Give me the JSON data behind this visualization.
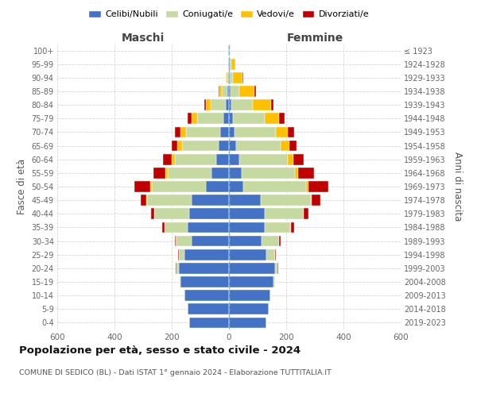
{
  "age_groups": [
    "0-4",
    "5-9",
    "10-14",
    "15-19",
    "20-24",
    "25-29",
    "30-34",
    "35-39",
    "40-44",
    "45-49",
    "50-54",
    "55-59",
    "60-64",
    "65-69",
    "70-74",
    "75-79",
    "80-84",
    "85-89",
    "90-94",
    "95-99",
    "100+"
  ],
  "birth_years": [
    "2019-2023",
    "2014-2018",
    "2009-2013",
    "2004-2008",
    "1999-2003",
    "1994-1998",
    "1989-1993",
    "1984-1988",
    "1979-1983",
    "1974-1978",
    "1969-1973",
    "1964-1968",
    "1959-1963",
    "1954-1958",
    "1949-1953",
    "1944-1948",
    "1939-1943",
    "1934-1938",
    "1929-1933",
    "1924-1928",
    "≤ 1923"
  ],
  "maschi": {
    "celibi": [
      140,
      145,
      155,
      170,
      175,
      155,
      130,
      145,
      140,
      130,
      80,
      60,
      45,
      35,
      30,
      20,
      10,
      5,
      3,
      2,
      2
    ],
    "coniugati": [
      0,
      0,
      0,
      3,
      8,
      20,
      55,
      80,
      120,
      155,
      190,
      155,
      145,
      130,
      120,
      90,
      55,
      20,
      5,
      2,
      0
    ],
    "vedovi": [
      0,
      0,
      0,
      0,
      0,
      0,
      0,
      0,
      0,
      3,
      5,
      8,
      10,
      15,
      20,
      20,
      15,
      8,
      2,
      0,
      0
    ],
    "divorziati": [
      0,
      0,
      0,
      0,
      2,
      3,
      5,
      8,
      12,
      20,
      55,
      40,
      30,
      20,
      20,
      15,
      5,
      3,
      2,
      0,
      0
    ]
  },
  "femmine": {
    "nubili": [
      130,
      140,
      145,
      155,
      160,
      130,
      115,
      125,
      125,
      110,
      50,
      45,
      35,
      25,
      20,
      15,
      8,
      5,
      3,
      2,
      2
    ],
    "coniugate": [
      0,
      0,
      0,
      5,
      10,
      30,
      60,
      90,
      135,
      175,
      220,
      185,
      170,
      155,
      145,
      110,
      75,
      30,
      10,
      5,
      0
    ],
    "vedove": [
      0,
      0,
      0,
      0,
      0,
      0,
      0,
      2,
      2,
      5,
      8,
      12,
      20,
      30,
      40,
      50,
      65,
      55,
      35,
      15,
      2
    ],
    "divorziate": [
      0,
      0,
      0,
      0,
      2,
      3,
      5,
      10,
      15,
      30,
      70,
      55,
      35,
      25,
      22,
      20,
      8,
      5,
      3,
      0,
      0
    ]
  },
  "colors": {
    "celibi_nubili": "#4472c4",
    "coniugati": "#c5d9a0",
    "vedovi": "#ffc000",
    "divorziati": "#c00000"
  },
  "title": "Popolazione per età, sesso e stato civile - 2024",
  "subtitle": "COMUNE DI SEDICO (BL) - Dati ISTAT 1° gennaio 2024 - Elaborazione TUTTITALIA.IT",
  "xlabel_left": "Maschi",
  "xlabel_right": "Femmine",
  "ylabel_left": "Fasce di età",
  "ylabel_right": "Anni di nascita",
  "legend_labels": [
    "Celibi/Nubili",
    "Coniugati/e",
    "Vedovi/e",
    "Divorziati/e"
  ],
  "xlim": 600,
  "background_color": "#ffffff",
  "grid_color": "#cccccc",
  "tick_color": "#666666",
  "label_color": "#555555"
}
